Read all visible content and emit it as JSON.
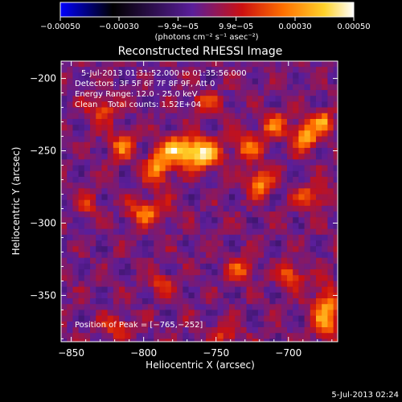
{
  "chart_data": {
    "type": "heatmap",
    "title": "Reconstructed RHESSI Image",
    "xlabel": "Heliocentric X (arcsec)",
    "ylabel": "Heliocentric Y (arcsec)",
    "xlim": [
      -857,
      -666
    ],
    "ylim": [
      -382,
      -188
    ],
    "x_ticks": [
      -850,
      -800,
      -750,
      -700
    ],
    "x_tick_labels": [
      "−850",
      "−800",
      "−750",
      "−700"
    ],
    "y_ticks": [
      -200,
      -250,
      -300,
      -350
    ],
    "y_tick_labels": [
      "−200",
      "−250",
      "−300",
      "−350"
    ],
    "colorbar": {
      "range": [
        -0.0005,
        0.0005
      ],
      "ticks": [
        -0.0005,
        -0.0003,
        -9.9e-05,
        9.9e-05,
        0.0003,
        0.0005
      ],
      "tick_labels": [
        "−0.00050",
        "−0.00030",
        "−9.9e−05",
        "9.9e−05",
        "0.00030",
        "0.00050"
      ],
      "units_label": "(photons cm⁻² s⁻¹ asec⁻²)",
      "colormap": [
        "#0000ff",
        "#000000",
        "#5a1e9a",
        "#cc1010",
        "#ff7000",
        "#ffd22a",
        "#ffffff"
      ]
    },
    "peak": [
      -765,
      -252
    ],
    "sources": [
      {
        "x": -763,
        "y": -250,
        "sx": 9,
        "sy": 7,
        "amp": 0.00048
      },
      {
        "x": -780,
        "y": -247,
        "sx": 7,
        "sy": 6,
        "amp": 0.00036
      },
      {
        "x": -792,
        "y": -260,
        "sx": 6,
        "sy": 8,
        "amp": 0.00032
      },
      {
        "x": -800,
        "y": -290,
        "sx": 9,
        "sy": 6,
        "amp": 0.00028
      },
      {
        "x": -817,
        "y": -245,
        "sx": 6,
        "sy": 7,
        "amp": 0.00025
      },
      {
        "x": -830,
        "y": -220,
        "sx": 7,
        "sy": 6,
        "amp": 0.00022
      },
      {
        "x": -730,
        "y": -245,
        "sx": 7,
        "sy": 7,
        "amp": 0.00026
      },
      {
        "x": -722,
        "y": -270,
        "sx": 6,
        "sy": 6,
        "amp": 0.00033
      },
      {
        "x": -712,
        "y": -230,
        "sx": 6,
        "sy": 6,
        "amp": 0.00026
      },
      {
        "x": -690,
        "y": -238,
        "sx": 6,
        "sy": 7,
        "amp": 0.00036
      },
      {
        "x": -678,
        "y": -228,
        "sx": 5,
        "sy": 5,
        "amp": 0.0003
      },
      {
        "x": -686,
        "y": -280,
        "sx": 8,
        "sy": 6,
        "amp": 0.00022
      },
      {
        "x": -676,
        "y": -360,
        "sx": 6,
        "sy": 12,
        "amp": 0.00036
      },
      {
        "x": -700,
        "y": -335,
        "sx": 6,
        "sy": 6,
        "amp": 0.00026
      },
      {
        "x": -735,
        "y": -330,
        "sx": 6,
        "sy": 6,
        "amp": 0.00022
      },
      {
        "x": -790,
        "y": -340,
        "sx": 6,
        "sy": 5,
        "amp": 0.0002
      },
      {
        "x": -820,
        "y": -370,
        "sx": 8,
        "sy": 5,
        "amp": 0.0002
      },
      {
        "x": -760,
        "y": -215,
        "sx": 8,
        "sy": 5,
        "amp": 0.00018
      },
      {
        "x": -840,
        "y": -285,
        "sx": 5,
        "sy": 6,
        "amp": 0.00016
      },
      {
        "x": -745,
        "y": -375,
        "sx": 7,
        "sy": 5,
        "amp": 0.00018
      }
    ]
  },
  "annotations": {
    "time_range": "5-Jul-2013 01:31:52.000 to 01:35:56.000",
    "detectors": "Detectors: 3F 5F 6F 7F 8F 9F, Att 0",
    "energy": "Energy Range: 12.0 - 25.0 keV",
    "clean_counts": "Clean    Total counts: 1.52E+04",
    "peak_text": "Position of Peak = [−765,−252]"
  },
  "footer_timestamp": "5-Jul-2013 02:24"
}
